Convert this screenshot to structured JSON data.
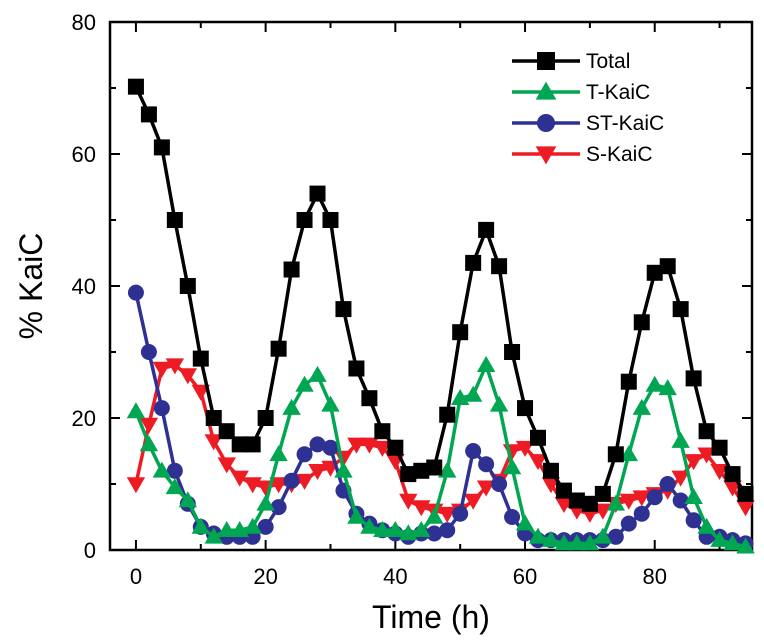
{
  "chart_data": {
    "type": "line",
    "title": "",
    "xlabel": "Time (h)",
    "ylabel": "% KaiC",
    "xlim": [
      -4,
      95
    ],
    "ylim": [
      0,
      80
    ],
    "xticks": [
      0,
      20,
      40,
      60,
      80
    ],
    "yticks": [
      0,
      20,
      40,
      60,
      80
    ],
    "grid": false,
    "legend": "top-right",
    "series": [
      {
        "name": "Total",
        "color": "#000000",
        "marker": "square",
        "x": [
          0,
          2,
          4,
          6,
          8,
          10,
          12,
          14,
          16,
          18,
          20,
          22,
          24,
          26,
          28,
          30,
          32,
          34,
          36,
          38,
          40,
          42,
          44,
          46,
          48,
          50,
          52,
          54,
          56,
          58,
          60,
          62,
          64,
          66,
          68,
          70,
          72,
          74,
          76,
          78,
          80,
          82,
          84,
          86,
          88,
          90,
          92,
          94
        ],
        "y": [
          70.2,
          66,
          61,
          50,
          40,
          29,
          20,
          18,
          16,
          16,
          20,
          30.5,
          42.5,
          50,
          54,
          50,
          36.5,
          27.5,
          23,
          18,
          15.5,
          11.5,
          12,
          12.5,
          20.5,
          33,
          43.5,
          48.5,
          43,
          30,
          21.5,
          17,
          12,
          9,
          7.5,
          7,
          8.5,
          14.5,
          25.5,
          34.5,
          42,
          43,
          36.5,
          26,
          18,
          15.5,
          11.5,
          8.5
        ]
      },
      {
        "name": "T-KaiC",
        "color": "#00a651",
        "marker": "triangle-up",
        "x": [
          0,
          2,
          4,
          6,
          8,
          10,
          12,
          14,
          16,
          18,
          20,
          22,
          24,
          26,
          28,
          30,
          32,
          34,
          36,
          38,
          40,
          42,
          44,
          46,
          48,
          50,
          52,
          54,
          56,
          58,
          60,
          62,
          64,
          66,
          68,
          70,
          72,
          74,
          76,
          78,
          80,
          82,
          84,
          86,
          88,
          90,
          92,
          94
        ],
        "y": [
          21,
          16,
          12,
          9.5,
          7.5,
          3.5,
          2,
          3,
          3,
          3.5,
          7,
          14.5,
          21.5,
          25,
          26.5,
          22,
          12,
          5,
          3.5,
          3,
          3,
          2.5,
          3,
          5,
          12,
          23,
          23.5,
          28,
          22,
          12.5,
          4,
          2,
          1.5,
          1,
          1,
          1,
          2,
          7,
          14.5,
          21.5,
          25,
          24.5,
          16.5,
          8,
          3.5,
          1.5,
          1,
          0.5
        ]
      },
      {
        "name": "ST-KaiC",
        "color": "#2e3192",
        "marker": "circle",
        "x": [
          0,
          2,
          4,
          6,
          8,
          10,
          12,
          14,
          16,
          18,
          20,
          22,
          24,
          26,
          28,
          30,
          32,
          34,
          36,
          38,
          40,
          42,
          44,
          46,
          48,
          50,
          52,
          54,
          56,
          58,
          60,
          62,
          64,
          66,
          68,
          70,
          72,
          74,
          76,
          78,
          80,
          82,
          84,
          86,
          88,
          90,
          92,
          94
        ],
        "y": [
          39,
          30,
          21.5,
          12,
          7,
          3.5,
          2.5,
          2,
          2,
          2,
          3.5,
          6.5,
          10.5,
          14.5,
          16,
          15.5,
          9,
          5.5,
          4,
          3,
          2.5,
          2,
          2.5,
          2.5,
          3,
          5.5,
          15,
          13,
          10,
          5,
          2.5,
          1.5,
          1.5,
          1.5,
          1.5,
          1.5,
          1.5,
          2,
          4,
          5.5,
          8,
          10,
          7.5,
          4.5,
          2,
          2,
          1.5,
          1
        ]
      },
      {
        "name": "S-KaiC",
        "color": "#ed1c24",
        "marker": "triangle-down",
        "x": [
          0,
          2,
          4,
          6,
          8,
          10,
          12,
          14,
          16,
          18,
          20,
          22,
          24,
          26,
          28,
          30,
          32,
          34,
          36,
          38,
          40,
          42,
          44,
          46,
          48,
          50,
          52,
          54,
          56,
          58,
          60,
          62,
          64,
          66,
          68,
          70,
          72,
          74,
          76,
          78,
          80,
          82,
          84,
          86,
          88,
          90,
          92,
          94
        ],
        "y": [
          10,
          19,
          27.5,
          28,
          26.5,
          24,
          16.5,
          13,
          11,
          10,
          9.5,
          10,
          10,
          10.5,
          12,
          12.5,
          14,
          16,
          16,
          15.5,
          13.5,
          7.5,
          6.5,
          6,
          5.5,
          6,
          7.5,
          9.5,
          10.5,
          15,
          15.5,
          13.5,
          10,
          7,
          6,
          5.5,
          6,
          7,
          7.5,
          8,
          8.5,
          9,
          11,
          13.5,
          14.5,
          12,
          9.5,
          6.5
        ]
      }
    ]
  }
}
